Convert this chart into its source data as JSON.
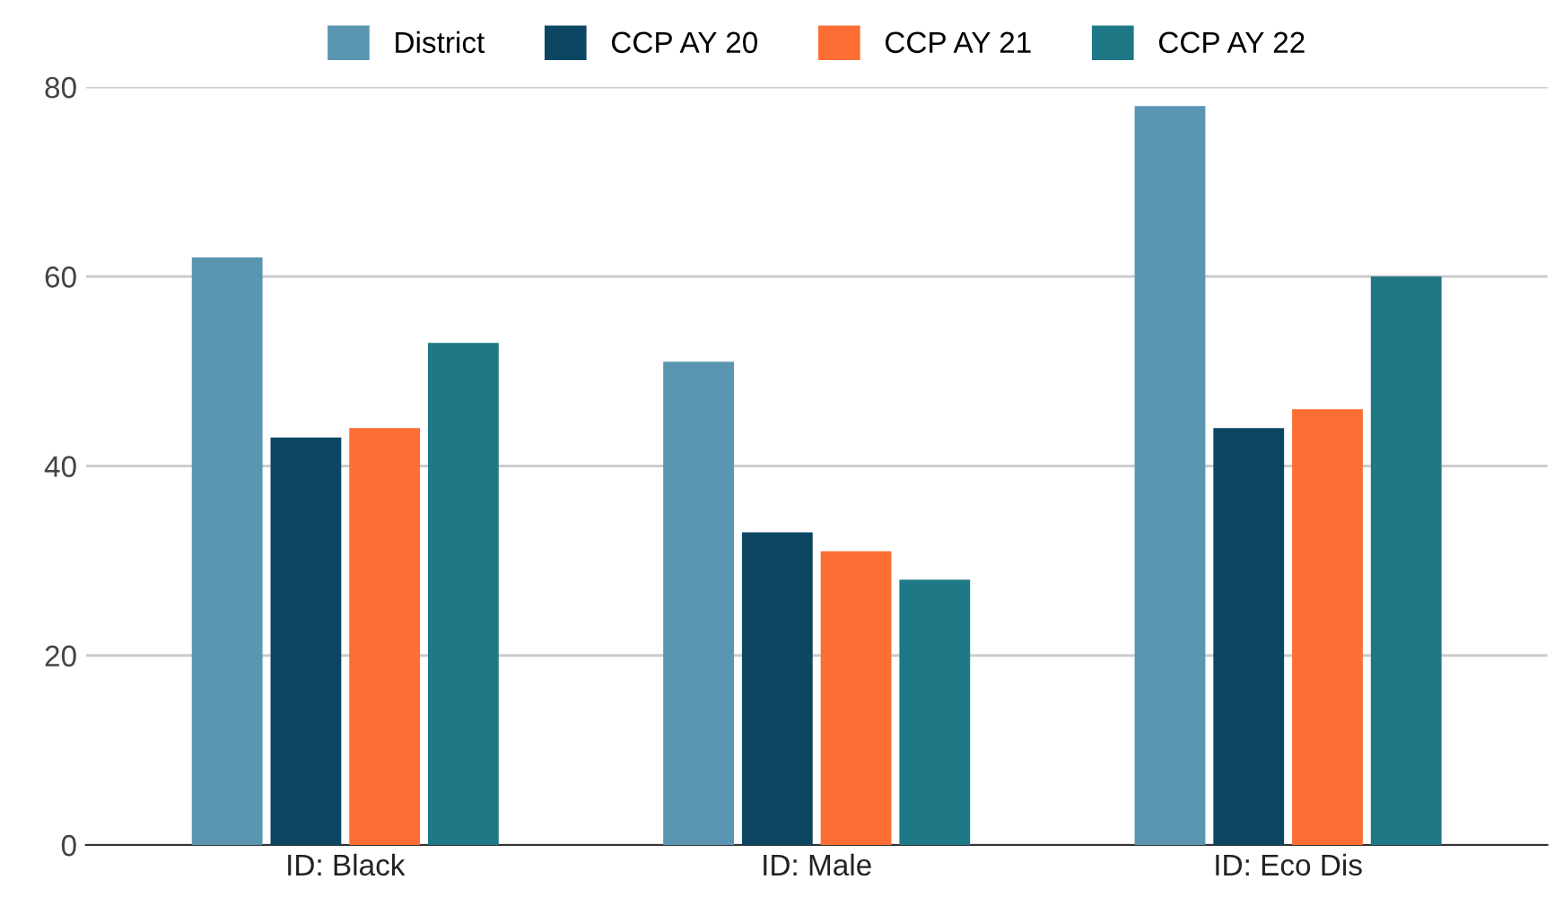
{
  "chart_data": {
    "type": "bar",
    "categories": [
      "ID: Black",
      "ID: Male",
      "ID: Eco Dis"
    ],
    "series": [
      {
        "name": "District",
        "color": "#5a95b2",
        "values": [
          62,
          51,
          78
        ]
      },
      {
        "name": "CCP AY 20",
        "color": "#0c4663",
        "values": [
          43,
          33,
          44
        ]
      },
      {
        "name": "CCP AY 21",
        "color": "#fc6e33",
        "values": [
          44,
          31,
          46
        ]
      },
      {
        "name": "CCP AY 22",
        "color": "#1f7886",
        "values": [
          53,
          28,
          60
        ]
      }
    ],
    "ylim": [
      0,
      80
    ],
    "yticks": [
      0,
      20,
      40,
      60,
      80
    ],
    "grid": "y",
    "legend": "top"
  }
}
